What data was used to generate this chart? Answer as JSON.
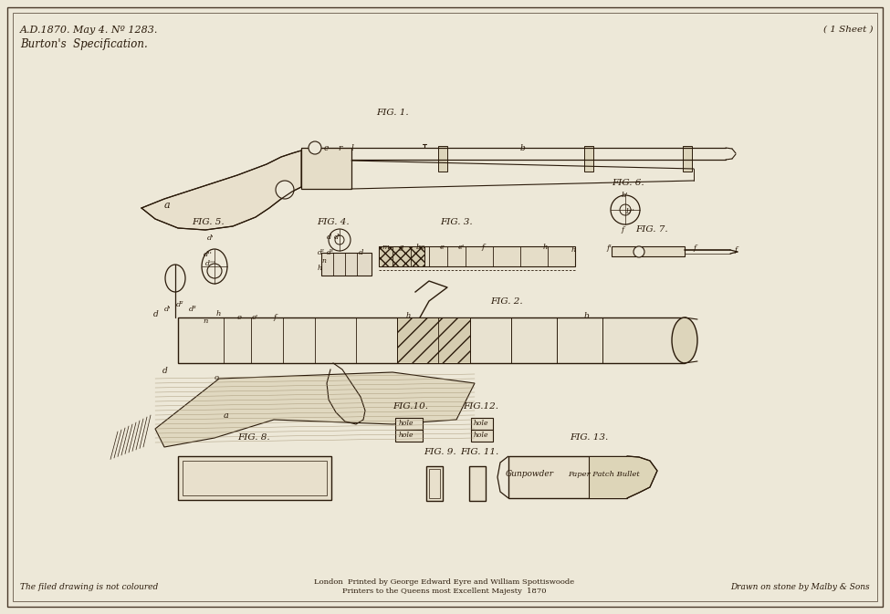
{
  "bg_color": "#ede8d8",
  "border_color": "#4a3a2a",
  "text_color": "#2a1a0a",
  "line_color": "#2a1a0a",
  "title_line1": "A.D.1870. May 4. Nº 1283.",
  "title_line2": "Burton's  Specification.",
  "top_right": "( 1 Sheet )",
  "bottom_left": "The filed drawing is not coloured",
  "bottom_right": "Drawn on stone by Malby & Sons",
  "bottom_center1": "London  Printed by George Edward Eyre and William Spottiswoode",
  "bottom_center2": "Printers to the Queens most Excellent Majesty  1870"
}
